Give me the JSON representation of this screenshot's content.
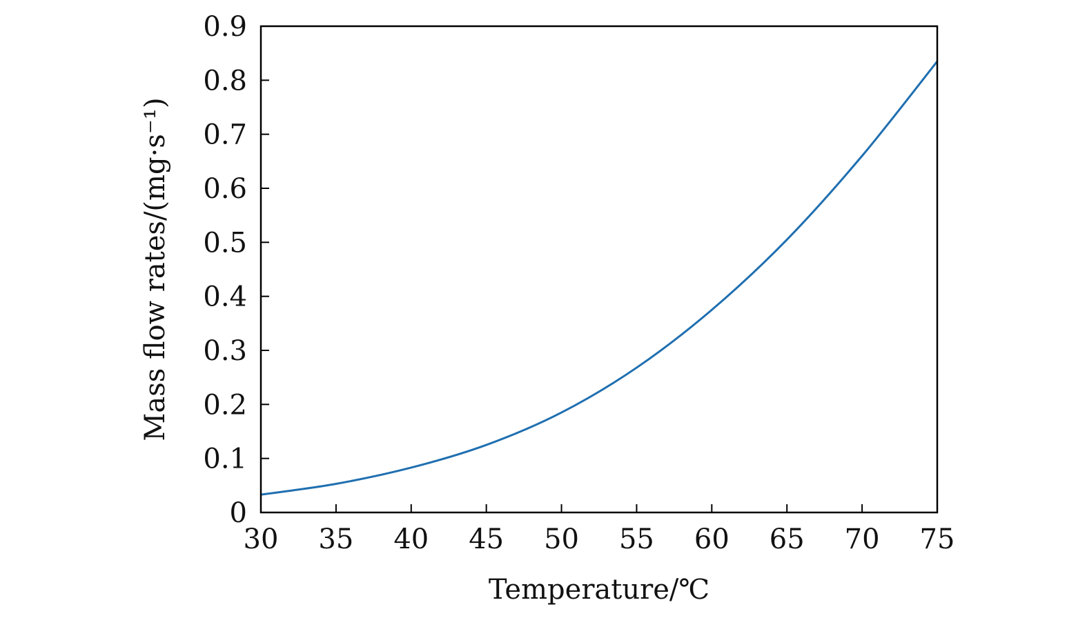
{
  "chart_data": {
    "type": "line",
    "title": "",
    "xlabel": "Temperature/℃",
    "ylabel": "Mass flow rates/(mg·s⁻¹)",
    "xlim": [
      30,
      75
    ],
    "ylim": [
      0,
      0.9
    ],
    "xticks": [
      30,
      35,
      40,
      45,
      50,
      55,
      60,
      65,
      70,
      75
    ],
    "xtick_labels": [
      "30",
      "35",
      "40",
      "45",
      "50",
      "55",
      "60",
      "65",
      "70",
      "75"
    ],
    "yticks": [
      0,
      0.1,
      0.2,
      0.3,
      0.4,
      0.5,
      0.6,
      0.7,
      0.8,
      0.9
    ],
    "ytick_labels": [
      "0",
      "0.1",
      "0.2",
      "0.3",
      "0.4",
      "0.5",
      "0.6",
      "0.7",
      "0.8",
      "0.9"
    ],
    "grid": false,
    "legend": "none",
    "series": [
      {
        "color": "#1f6fb0",
        "x": [
          30,
          35,
          40,
          45,
          50,
          55,
          60,
          65,
          70,
          75
        ],
        "y": [
          0.033,
          0.053,
          0.083,
          0.125,
          0.185,
          0.268,
          0.375,
          0.505,
          0.66,
          0.835
        ]
      }
    ]
  }
}
